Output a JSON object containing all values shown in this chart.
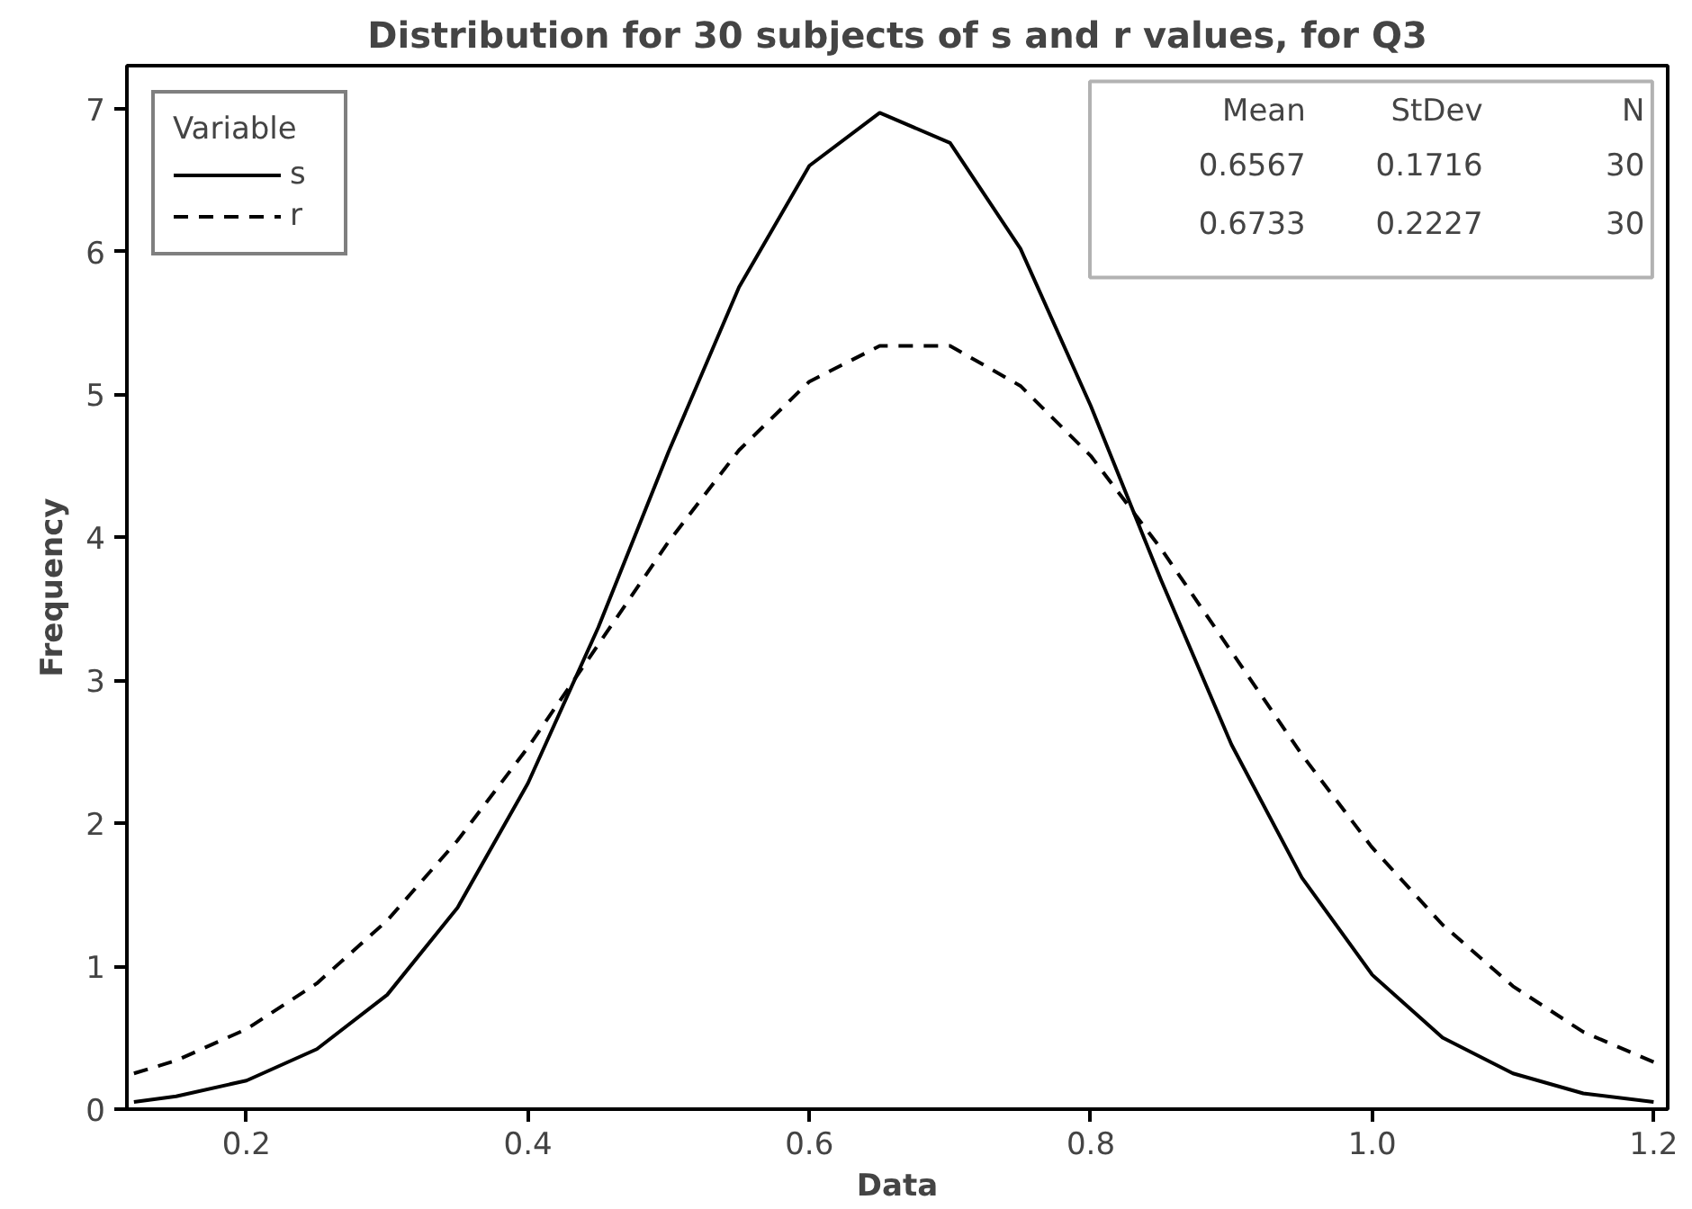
{
  "chart_data": {
    "type": "line",
    "title": "Distribution for 30 subjects of s and r values, for Q3",
    "xlabel": "Data",
    "ylabel": "Frequency",
    "legend_title": "Variable",
    "x": [
      0.12,
      0.15,
      0.2,
      0.25,
      0.3,
      0.35,
      0.4,
      0.45,
      0.5,
      0.55,
      0.6,
      0.65,
      0.7,
      0.75,
      0.8,
      0.85,
      0.9,
      0.95,
      1.0,
      1.05,
      1.1,
      1.15,
      1.2
    ],
    "series": [
      {
        "name": "s",
        "color": "#000000",
        "line_style": "solid",
        "values": [
          0.05,
          0.09,
          0.2,
          0.42,
          0.8,
          1.41,
          2.28,
          3.37,
          4.6,
          5.75,
          6.6,
          6.97,
          6.76,
          6.02,
          4.92,
          3.7,
          2.55,
          1.62,
          0.94,
          0.5,
          0.25,
          0.11,
          0.05
        ]
      },
      {
        "name": "r",
        "color": "#000000",
        "line_style": "dashed",
        "values": [
          0.25,
          0.34,
          0.56,
          0.88,
          1.32,
          1.88,
          2.53,
          3.25,
          3.97,
          4.61,
          5.09,
          5.34,
          5.34,
          5.06,
          4.57,
          3.92,
          3.2,
          2.48,
          1.83,
          1.29,
          0.86,
          0.54,
          0.33
        ]
      }
    ],
    "xlim": [
      0.115,
      1.21
    ],
    "ylim": [
      0,
      7.3
    ],
    "xticks": [
      0.2,
      0.4,
      0.6,
      0.8,
      {
        "value": 1.0,
        "label": "1.0"
      },
      1.2
    ],
    "yticks": [
      0,
      1,
      2,
      3,
      4,
      5,
      6,
      7
    ],
    "grid": false,
    "legend": "top left",
    "marker": "none",
    "annotations": [
      "Mean",
      "StDev",
      "N",
      "0.6567",
      "0.1716",
      "30",
      "0.6733",
      "0.2227",
      "30"
    ]
  }
}
